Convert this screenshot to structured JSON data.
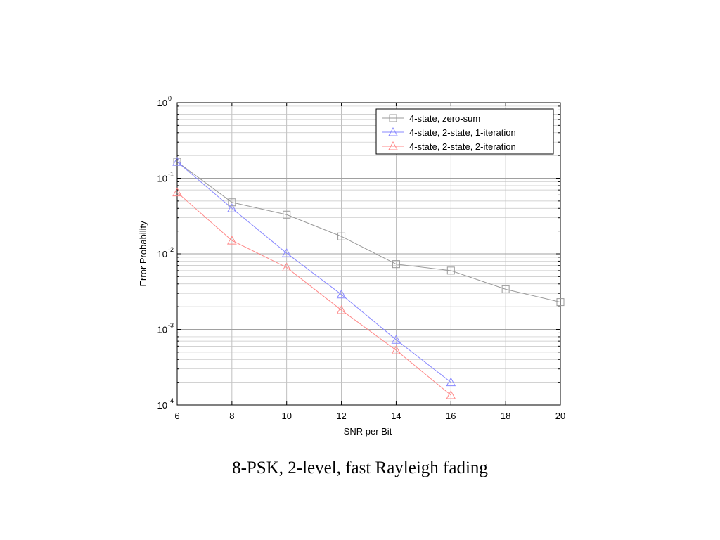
{
  "caption": "8-PSK, 2-level, fast Rayleigh fading",
  "chart_data": {
    "type": "line",
    "title": "",
    "xlabel": "SNR per Bit",
    "ylabel": "Error Probability",
    "xlim": [
      6,
      20
    ],
    "ylim": [
      0.0001,
      1
    ],
    "yscale": "log",
    "grid": true,
    "legend_position": "top-right",
    "x_ticks": [
      6,
      8,
      10,
      12,
      14,
      16,
      18,
      20
    ],
    "y_ticks": [
      {
        "value": 1,
        "base": "10",
        "exponent": "0"
      },
      {
        "value": 0.1,
        "base": "10",
        "exponent": "-1"
      },
      {
        "value": 0.01,
        "base": "10",
        "exponent": "-2"
      },
      {
        "value": 0.001,
        "base": "10",
        "exponent": "-3"
      },
      {
        "value": 0.0001,
        "base": "10",
        "exponent": "-4"
      }
    ],
    "series": [
      {
        "name": "4-state, zero-sum",
        "marker": "square",
        "color": "#999999",
        "x": [
          6,
          8,
          10,
          12,
          14,
          16,
          18,
          20
        ],
        "y": [
          0.165,
          0.048,
          0.033,
          0.017,
          0.0073,
          0.006,
          0.0034,
          0.0023
        ]
      },
      {
        "name": "4-state, 2-state, 1-iteration",
        "marker": "triangle",
        "color": "#8888ff",
        "x": [
          6,
          8,
          10,
          12,
          14,
          16
        ],
        "y": [
          0.165,
          0.04,
          0.0102,
          0.0029,
          0.00073,
          0.0002
        ]
      },
      {
        "name": "4-state, 2-state, 2-iteration",
        "marker": "triangle",
        "color": "#ff8888",
        "x": [
          6,
          8,
          10,
          12,
          14,
          16
        ],
        "y": [
          0.065,
          0.015,
          0.0066,
          0.0018,
          0.00053,
          0.000135
        ]
      }
    ]
  }
}
